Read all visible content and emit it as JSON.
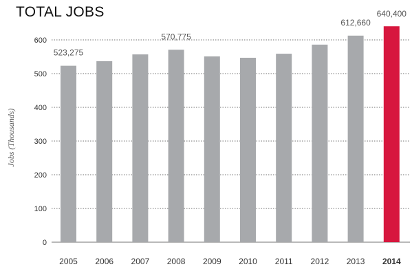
{
  "chart_data": {
    "type": "bar",
    "title": "TOTAL JOBS",
    "ylabel": "Jobs (Thousands)",
    "xlabel": "",
    "categories": [
      "2005",
      "2006",
      "2007",
      "2008",
      "2009",
      "2010",
      "2011",
      "2012",
      "2013",
      "2014"
    ],
    "values": [
      523.275,
      537,
      557,
      570.775,
      551,
      547,
      559,
      586,
      612.66,
      640.4
    ],
    "data_labels": [
      {
        "category": "2005",
        "text": "523,275"
      },
      {
        "category": "2008",
        "text": "570,775"
      },
      {
        "category": "2013",
        "text": "612,660"
      },
      {
        "category": "2014",
        "text": "640,400"
      }
    ],
    "ylim": [
      0,
      650
    ],
    "yticks": [
      0,
      100,
      200,
      300,
      400,
      500,
      600
    ],
    "grid": true,
    "legend": "none",
    "colors": {
      "bar": "#a7a9ac",
      "highlight": "#d7173e",
      "grid": "#444444",
      "text": "#333333"
    },
    "highlight_category": "2014"
  }
}
